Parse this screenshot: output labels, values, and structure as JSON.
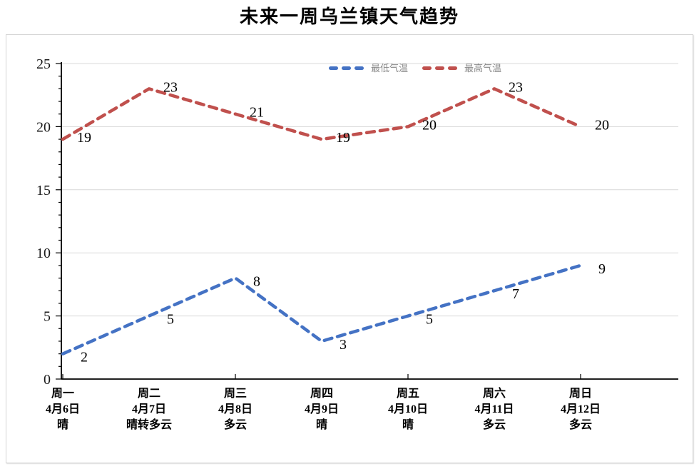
{
  "page": {
    "title": "未来一周乌兰镇天气趋势"
  },
  "chart_data": {
    "type": "line",
    "title": "未来一周乌兰镇天气趋势",
    "line_style": "dashed",
    "grid": true,
    "legend_position": "top-center-inside",
    "ylim": [
      0,
      25
    ],
    "yticks": [
      0,
      5,
      10,
      15,
      20,
      25
    ],
    "minor_tick_interval": 1,
    "categories": [
      {
        "day": "周一",
        "date": "4月6日",
        "weather": "晴"
      },
      {
        "day": "周二",
        "date": "4月7日",
        "weather": "晴转多云"
      },
      {
        "day": "周三",
        "date": "4月8日",
        "weather": "多云"
      },
      {
        "day": "周四",
        "date": "4月9日",
        "weather": "晴"
      },
      {
        "day": "周五",
        "date": "4月10日",
        "weather": "晴"
      },
      {
        "day": "周六",
        "date": "4月11日",
        "weather": "多云"
      },
      {
        "day": "周日",
        "date": "4月12日",
        "weather": "多云"
      }
    ],
    "series": [
      {
        "name": "最低气温",
        "color": "#4472c4",
        "values": [
          2,
          5,
          8,
          3,
          5,
          7,
          9
        ]
      },
      {
        "name": "最高气温",
        "color": "#c0504d",
        "values": [
          19,
          23,
          21,
          19,
          20,
          23,
          20
        ]
      }
    ]
  },
  "colors": {
    "axis": "#000000",
    "gridline": "#d9d9d9",
    "data_label": "#000000",
    "legend_text": "#8a8a8a",
    "panel_border": "#d4d4d4"
  }
}
